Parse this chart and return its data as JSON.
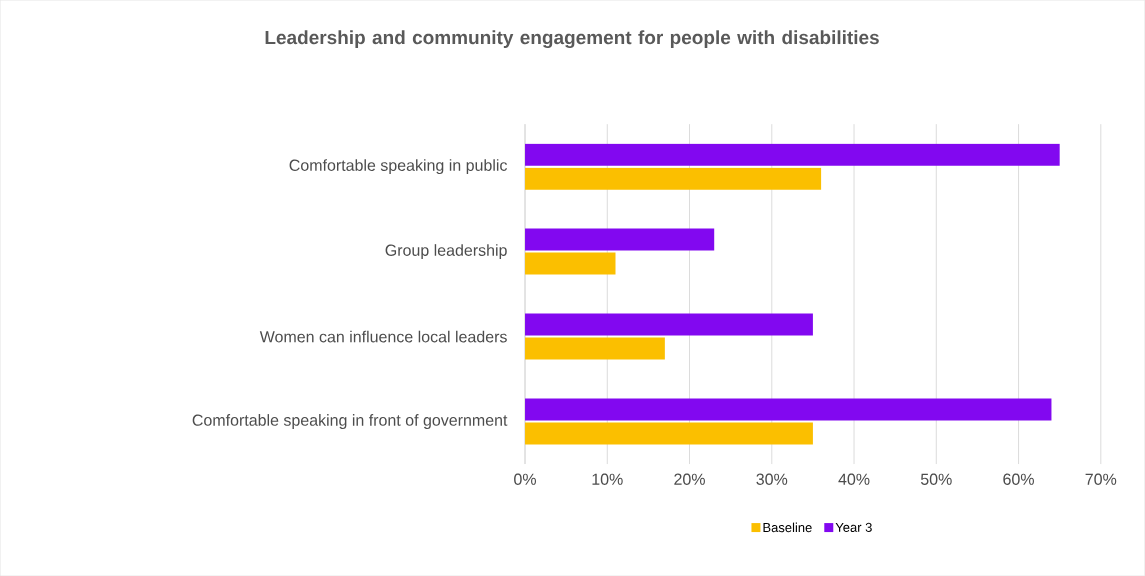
{
  "chart_data": {
    "type": "bar",
    "orientation": "horizontal",
    "title": "Leadership and community engagement for people with disabilities",
    "categories": [
      "Comfortable speaking in public",
      "Group leadership",
      "Women can influence local leaders",
      "Comfortable speaking in front of government"
    ],
    "series": [
      {
        "name": "Baseline",
        "color": "#fbbf00",
        "values": [
          36,
          11,
          17,
          35
        ]
      },
      {
        "name": "Year 3",
        "color": "#8208f0",
        "values": [
          65,
          23,
          35,
          64
        ]
      }
    ],
    "xlim": [
      0,
      70
    ],
    "xticks": [
      {
        "value": 0,
        "label": "0%"
      },
      {
        "value": 10,
        "label": "10%"
      },
      {
        "value": 20,
        "label": "20%"
      },
      {
        "value": 30,
        "label": "30%"
      },
      {
        "value": 40,
        "label": "40%"
      },
      {
        "value": 50,
        "label": "50%"
      },
      {
        "value": 60,
        "label": "60%"
      },
      {
        "value": 70,
        "label": "70%"
      }
    ],
    "grid": "x",
    "legend": "bottom"
  }
}
